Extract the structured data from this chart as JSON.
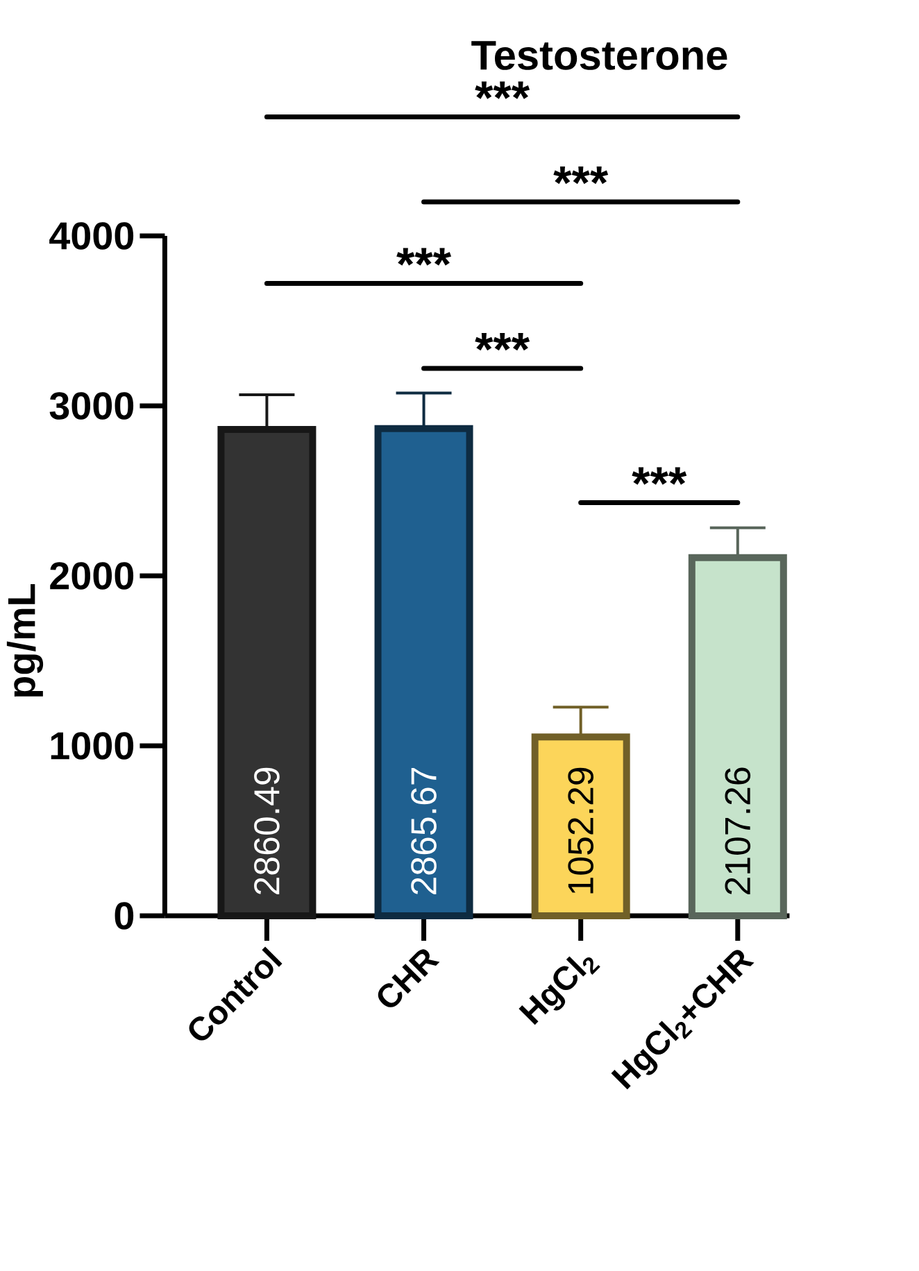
{
  "chart_data": {
    "type": "bar",
    "title": "Testosterone",
    "ylabel": "pg/mL",
    "categories": [
      "Control",
      "CHR",
      "HgCl$_{2}$",
      "HgCl$_{2}$+CHR"
    ],
    "values": [
      2860.49,
      2865.67,
      1052.29,
      2107.26
    ],
    "value_labels": [
      "2860.49",
      "2865.67",
      "1052.29",
      "2107.26"
    ],
    "errors": [
      205,
      210,
      175,
      175
    ],
    "colors": [
      "#333333",
      "#1f6090",
      "#fcd55a",
      "#c6e3cb"
    ],
    "ylim": [
      0,
      4000
    ],
    "yticks": [
      0,
      1000,
      2000,
      3000,
      4000
    ],
    "annotations": [
      "***",
      "***",
      "***",
      "***",
      "***"
    ]
  }
}
